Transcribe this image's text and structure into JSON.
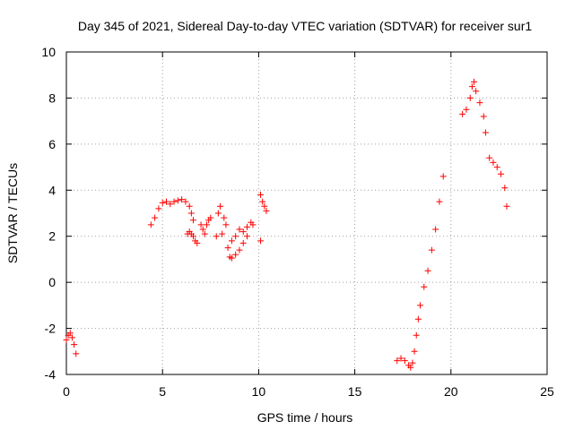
{
  "chart_data": {
    "type": "scatter",
    "title": "Day 345 of 2021, Sidereal Day-to-day VTEC variation (SDTVAR) for receiver sur1",
    "xlabel": "GPS time / hours",
    "ylabel": "SDTVAR / TECUs",
    "xlim": [
      0,
      25
    ],
    "ylim": [
      -4,
      10
    ],
    "xticks": [
      0,
      5,
      10,
      15,
      20,
      25
    ],
    "yticks": [
      -4,
      -2,
      0,
      2,
      4,
      6,
      8,
      10
    ],
    "grid": true,
    "marker": "+",
    "color": "#ff0000",
    "series": [
      {
        "name": "SDTVAR",
        "segments": [
          {
            "x": [
              0.0,
              0.1,
              0.2,
              0.3,
              0.4,
              0.5
            ],
            "y": [
              -2.5,
              -2.3,
              -2.2,
              -2.4,
              -2.7,
              -3.1
            ]
          },
          {
            "x": [
              4.4,
              4.6,
              4.8,
              5.0,
              5.2,
              5.4,
              5.6,
              5.8,
              6.0,
              6.2,
              6.4,
              6.5,
              6.6
            ],
            "y": [
              2.5,
              2.8,
              3.2,
              3.45,
              3.5,
              3.4,
              3.5,
              3.55,
              3.6,
              3.5,
              3.3,
              3.0,
              2.7
            ]
          },
          {
            "x": [
              6.3,
              6.4,
              6.5,
              6.6,
              6.7,
              6.8
            ],
            "y": [
              2.1,
              2.2,
              2.1,
              2.0,
              1.8,
              1.7
            ]
          },
          {
            "x": [
              7.0,
              7.1,
              7.2,
              7.3,
              7.4,
              7.5
            ],
            "y": [
              2.5,
              2.3,
              2.1,
              2.5,
              2.7,
              2.8
            ]
          },
          {
            "x": [
              7.8,
              7.9,
              8.0,
              8.1
            ],
            "y": [
              2.0,
              3.0,
              3.3,
              2.1
            ]
          },
          {
            "x": [
              8.2,
              8.3,
              8.4,
              8.5,
              8.6,
              8.8,
              9.0,
              9.2,
              9.4
            ],
            "y": [
              2.8,
              2.5,
              1.5,
              1.1,
              1.05,
              1.2,
              1.4,
              1.7,
              2.0
            ]
          },
          {
            "x": [
              8.6,
              8.8,
              9.0,
              9.2,
              9.4,
              9.6,
              9.7
            ],
            "y": [
              1.8,
              2.0,
              2.3,
              2.2,
              2.4,
              2.6,
              2.5
            ]
          },
          {
            "x": [
              10.1
            ],
            "y": [
              1.8
            ]
          },
          {
            "x": [
              10.1,
              10.2,
              10.3,
              10.4
            ],
            "y": [
              3.8,
              3.5,
              3.3,
              3.1
            ]
          },
          {
            "x": [
              17.2,
              17.4,
              17.6,
              17.8,
              17.9,
              18.0,
              18.1,
              18.2,
              18.3,
              18.4,
              18.6,
              18.8,
              19.0,
              19.2,
              19.4,
              19.6
            ],
            "y": [
              -3.4,
              -3.3,
              -3.4,
              -3.6,
              -3.7,
              -3.5,
              -3.0,
              -2.3,
              -1.6,
              -1.0,
              -0.2,
              0.5,
              1.4,
              2.3,
              3.5,
              4.6
            ]
          },
          {
            "x": [
              20.6,
              20.8,
              21.0,
              21.1,
              21.2,
              21.3,
              21.5,
              21.7,
              21.8,
              22.0,
              22.2,
              22.4,
              22.6,
              22.8,
              22.9
            ],
            "y": [
              7.3,
              7.5,
              8.0,
              8.5,
              8.7,
              8.3,
              7.8,
              7.2,
              6.5,
              5.4,
              5.2,
              5.0,
              4.7,
              4.1,
              3.3
            ]
          }
        ]
      }
    ]
  }
}
